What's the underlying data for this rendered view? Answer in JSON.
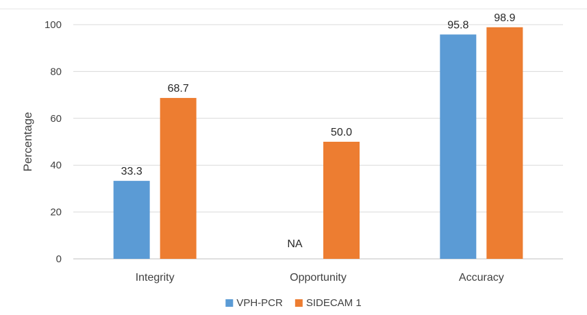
{
  "chart_data": {
    "type": "bar",
    "title": "",
    "xlabel": "",
    "ylabel": "Percentage",
    "ylim": [
      0,
      100
    ],
    "yticks": [
      0,
      20,
      40,
      60,
      80,
      100
    ],
    "grid": true,
    "legend_position": "bottom",
    "categories": [
      "Integrity",
      "Opportunity",
      "Accuracy"
    ],
    "series": [
      {
        "name": "VPH-PCR",
        "color": "#5B9BD5",
        "values": [
          33.3,
          null,
          95.8
        ],
        "labels": [
          "33.3",
          "NA",
          "95.8"
        ]
      },
      {
        "name": "SIDECAM 1",
        "color": "#ED7D31",
        "values": [
          68.7,
          50.0,
          98.9
        ],
        "labels": [
          "68.7",
          "50.0",
          "98.9"
        ]
      }
    ]
  }
}
